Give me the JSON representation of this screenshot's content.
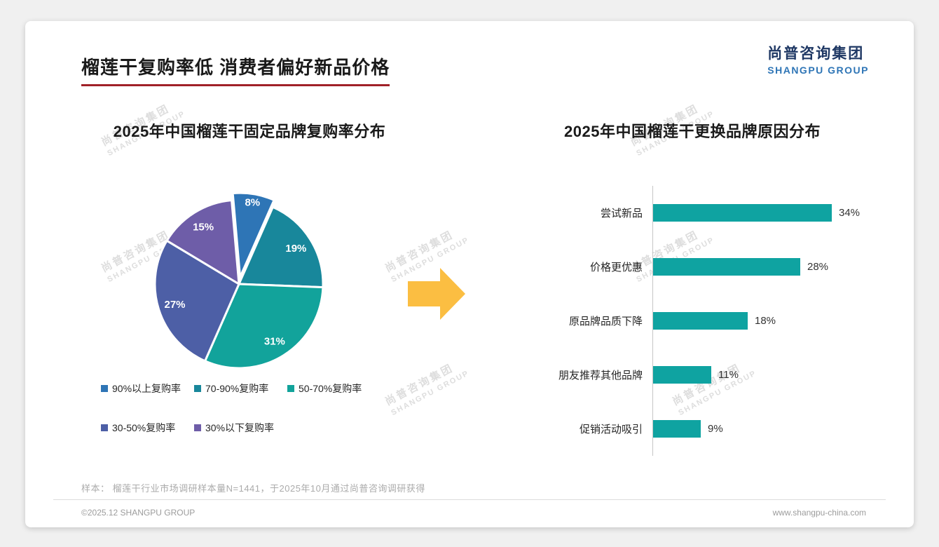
{
  "page": {
    "title": "榴莲干复购率低 消费者偏好新品价格",
    "sample_note": "样本： 榴莲干行业市场调研样本量N=1441，于2025年10月通过尚普咨询调研获得",
    "footer_left": "©2025.12 SHANGPU GROUP",
    "footer_right": "www.shangpu-china.com"
  },
  "logo": {
    "cn": "尚普咨询集团",
    "en": "SHANGPU GROUP"
  },
  "watermark": {
    "cn": "尚普咨询集团",
    "en": "SHANGPU GROUP"
  },
  "accent": {
    "title_underline": "#A02128",
    "logo_navy": "#1F3864",
    "logo_blue": "#2E75B6",
    "arrow": "#FBBE42"
  },
  "chart_data": [
    {
      "type": "pie",
      "title": "2025年中国榴莲干固定品牌复购率分布",
      "labels": [
        "90%以上复购率",
        "70-90%复购率",
        "50-70%复购率",
        "30-50%复购率",
        "30%以下复购率"
      ],
      "values": [
        8,
        19,
        31,
        27,
        15
      ],
      "unit": "%",
      "colors": [
        "#2E75B6",
        "#18879B",
        "#12A39B",
        "#4D5FA6",
        "#6E5DA8"
      ],
      "start_angle": -5,
      "explode": [
        10,
        0,
        0,
        0,
        0
      ],
      "legend_position": "bottom"
    },
    {
      "type": "bar",
      "orientation": "horizontal",
      "title": "2025年中国榴莲干更换品牌原因分布",
      "categories": [
        "尝试新品",
        "价格更优惠",
        "原品牌品质下降",
        "朋友推荐其他品牌",
        "促销活动吸引"
      ],
      "values": [
        34,
        28,
        18,
        11,
        9
      ],
      "value_suffix": "%",
      "bar_color": "#0FA3A1",
      "axis_color": "#C6C6C6",
      "xlim": [
        0,
        40
      ],
      "grid": false,
      "value_labels": true
    }
  ]
}
